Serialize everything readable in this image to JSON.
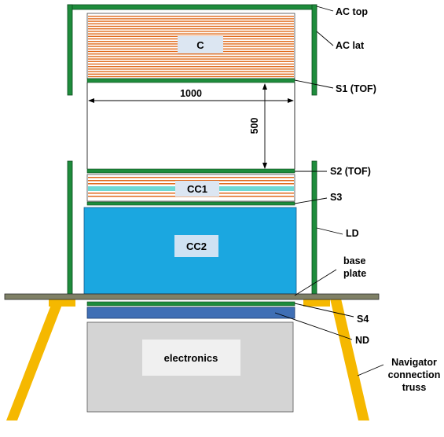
{
  "labels": {
    "ac_top": "AC top",
    "ac_lat": "AC lat",
    "s1": "S1 (TOF)",
    "s2": "S2 (TOF)",
    "s3": "S3",
    "ld": "LD",
    "base_plate_line1": "base",
    "base_plate_line2": "plate",
    "s4": "S4",
    "nd": "ND",
    "truss_line1": "Navigator",
    "truss_line2": "connection",
    "truss_line3": "truss"
  },
  "boxes": {
    "c": "C",
    "cc1": "CC1",
    "cc2": "CC2",
    "electronics": "electronics"
  },
  "dimensions": {
    "width": "1000",
    "gap": "500"
  },
  "colors": {
    "ac_green": "#1e8c3c",
    "calorimeter_stripe": "#e06a1c",
    "cc1_cyan": "#6fd9d4",
    "cc2_blue": "#1ba7e0",
    "nd_blue": "#3f6fb5",
    "base_plate": "#7f8066",
    "truss_yellow": "#f5b800",
    "electronics_grey": "#d4d4d4"
  }
}
